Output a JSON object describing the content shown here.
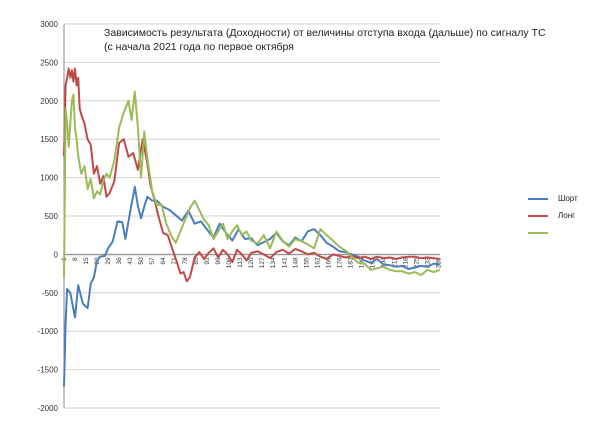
{
  "chart_data": {
    "type": "line",
    "title_line1": "Зависимость результата (Доходности) от величины отступа входа (дальше) по сигналу ТС",
    "title_line2": "(с начала 2021 года по первое октября",
    "xlabel": "",
    "ylabel": "",
    "ylim": [
      -2000,
      3000
    ],
    "yticks": [
      "3000",
      "2500",
      "2000",
      "1500",
      "1000",
      "500",
      "0",
      "-500",
      "-1000",
      "-1500",
      "-2000"
    ],
    "xtick_labels": [
      "1",
      "8",
      "15",
      "22",
      "29",
      "36",
      "43",
      "50",
      "57",
      "64",
      "71",
      "78",
      "85",
      "92",
      "99",
      "106",
      "113",
      "120",
      "127",
      "134",
      "141",
      "148",
      "155",
      "162",
      "169",
      "176",
      "183",
      "190",
      "197",
      "204",
      "211",
      "218",
      "225",
      "232",
      "239"
    ],
    "grid": true,
    "legend_position": "right",
    "series": [
      {
        "name": "Шорт",
        "color": "#4a7ebb",
        "x": [
          1,
          2,
          3,
          5,
          8,
          10,
          13,
          16,
          18,
          20,
          22,
          24,
          27,
          29,
          32,
          35,
          38,
          40,
          43,
          46,
          48,
          50,
          52,
          54,
          57,
          60,
          64,
          68,
          72,
          76,
          80,
          84,
          88,
          92,
          96,
          100,
          104,
          108,
          112,
          116,
          120,
          124,
          128,
          132,
          136,
          140,
          144,
          148,
          152,
          156,
          160,
          164,
          168,
          172,
          176,
          180,
          184,
          188,
          192,
          196,
          200,
          204,
          208,
          212,
          216,
          220,
          224,
          228,
          232,
          236,
          240
        ],
        "values": [
          -1720,
          -900,
          -450,
          -500,
          -820,
          -400,
          -640,
          -700,
          -380,
          -300,
          -80,
          -30,
          -20,
          80,
          170,
          430,
          420,
          200,
          550,
          880,
          630,
          470,
          620,
          750,
          700,
          700,
          620,
          580,
          510,
          440,
          570,
          400,
          430,
          320,
          220,
          400,
          280,
          180,
          330,
          200,
          210,
          120,
          160,
          200,
          280,
          170,
          120,
          220,
          170,
          300,
          330,
          250,
          150,
          100,
          40,
          30,
          0,
          -30,
          -80,
          -110,
          -60,
          -130,
          -140,
          -160,
          -150,
          -190,
          -170,
          -150,
          -160,
          -120,
          -130
        ]
      },
      {
        "name": "Лонг",
        "color": "#be4b48",
        "x": [
          1,
          2,
          3,
          4,
          5,
          6,
          7,
          8,
          9,
          10,
          11,
          12,
          14,
          16,
          18,
          20,
          22,
          24,
          26,
          28,
          30,
          33,
          36,
          39,
          42,
          45,
          48,
          51,
          54,
          56,
          58,
          61,
          64,
          67,
          70,
          73,
          75,
          77,
          79,
          81,
          84,
          87,
          90,
          93,
          96,
          99,
          102,
          105,
          108,
          111,
          114,
          117,
          120,
          124,
          128,
          132,
          136,
          140,
          144,
          148,
          152,
          156,
          160,
          164,
          168,
          172,
          176,
          180,
          184,
          188,
          192,
          196,
          200,
          204,
          208,
          212,
          216,
          220,
          224,
          228,
          232,
          236,
          240
        ],
        "values": [
          1280,
          2200,
          2300,
          2420,
          2300,
          2400,
          2250,
          2420,
          2200,
          2300,
          1900,
          1820,
          1700,
          1500,
          1430,
          1050,
          1150,
          920,
          1020,
          750,
          800,
          950,
          1450,
          1500,
          1270,
          1320,
          1100,
          1500,
          1180,
          900,
          750,
          500,
          280,
          250,
          60,
          -120,
          -250,
          -230,
          -350,
          -300,
          -40,
          30,
          -60,
          20,
          80,
          -40,
          60,
          0,
          -100,
          60,
          0,
          -80,
          20,
          40,
          0,
          -50,
          30,
          60,
          10,
          70,
          40,
          0,
          20,
          -30,
          -60,
          0,
          -20,
          -40,
          -20,
          -50,
          -30,
          -60,
          -30,
          -50,
          -40,
          -60,
          -40,
          -30,
          -30,
          -50,
          -40,
          -50,
          -60
        ]
      },
      {
        "name": "",
        "color": "#9bbb59",
        "x": [
          1,
          2,
          3,
          4,
          6,
          7,
          8,
          9,
          10,
          12,
          14,
          16,
          18,
          20,
          22,
          24,
          26,
          28,
          30,
          33,
          36,
          39,
          42,
          44,
          46,
          48,
          50,
          52,
          54,
          57,
          60,
          63,
          66,
          69,
          72,
          75,
          78,
          81,
          84,
          87,
          90,
          93,
          96,
          99,
          102,
          105,
          108,
          111,
          114,
          117,
          120,
          124,
          128,
          132,
          136,
          140,
          144,
          148,
          152,
          156,
          160,
          164,
          168,
          172,
          176,
          180,
          184,
          188,
          192,
          196,
          200,
          204,
          208,
          212,
          216,
          220,
          224,
          228,
          232,
          236,
          240
        ],
        "values": [
          -300,
          1900,
          1720,
          1400,
          2000,
          2080,
          1650,
          1500,
          1280,
          1050,
          1150,
          850,
          980,
          730,
          820,
          780,
          960,
          1050,
          1000,
          1220,
          1650,
          1850,
          2000,
          1750,
          2120,
          1650,
          1000,
          1600,
          1250,
          830,
          640,
          650,
          400,
          250,
          150,
          300,
          450,
          600,
          700,
          580,
          450,
          380,
          200,
          300,
          400,
          200,
          300,
          380,
          250,
          300,
          180,
          140,
          250,
          80,
          300,
          180,
          100,
          200,
          170,
          130,
          80,
          330,
          250,
          180,
          100,
          50,
          -30,
          -110,
          -120,
          -200,
          -180,
          -160,
          -200,
          -220,
          -220,
          -250,
          -230,
          -270,
          -200,
          -230,
          -200
        ]
      }
    ]
  }
}
